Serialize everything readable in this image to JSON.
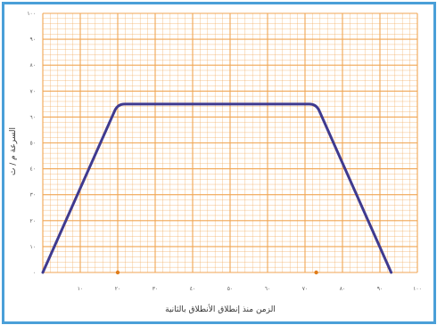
{
  "chart_data": {
    "type": "line",
    "xlabel": "الزمن منذ إنطلاق الأنطلاق بالثانية",
    "ylabel": "السرعة م / ث",
    "x_ticks": [
      "١٠",
      "٢٠",
      "٣٠",
      "٤٠",
      "٥٠",
      "٦٠",
      "٧٠",
      "٨٠",
      "٩٠",
      "١٠٠"
    ],
    "y_ticks": [
      "٠",
      "١٠",
      "٢٠",
      "٣٠",
      "٤٠",
      "٥٠",
      "٦٠",
      "٧٠",
      "٨٠",
      "٩٠",
      "١٠٠"
    ],
    "xlim": [
      0,
      100
    ],
    "ylim": [
      0,
      100
    ],
    "grid": true,
    "series": [
      {
        "values": [
          [
            0,
            0
          ],
          [
            20,
            65
          ],
          [
            73,
            65
          ],
          [
            93,
            0
          ]
        ]
      }
    ],
    "colors": {
      "line": "#3f3a8f",
      "grid": "#f0a654",
      "frame": "#4a9fd8",
      "marker": "#e07c1a"
    }
  }
}
